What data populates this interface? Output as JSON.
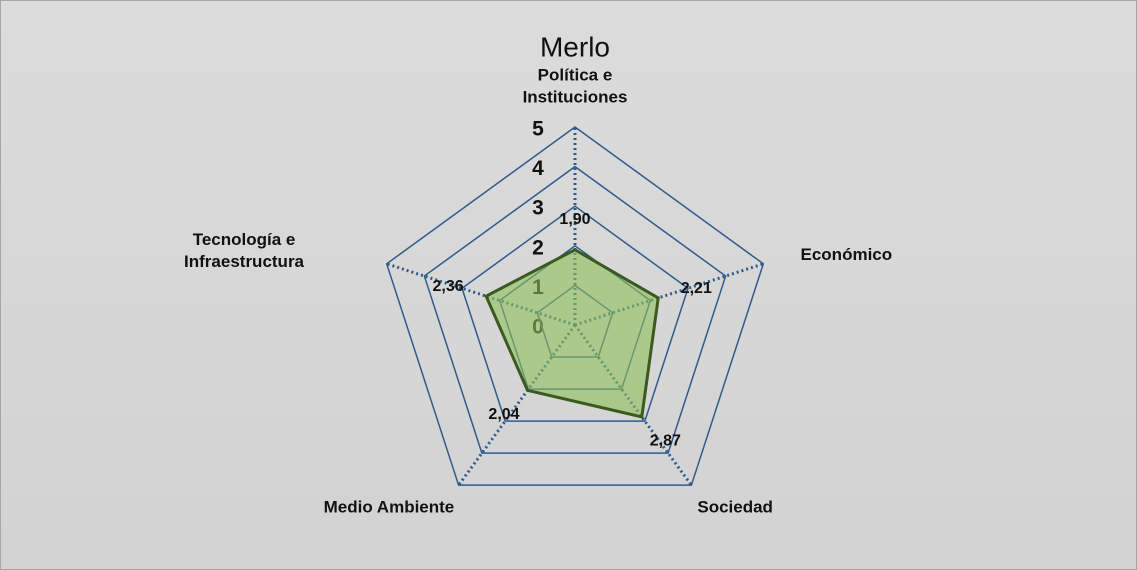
{
  "chart_data": {
    "type": "radar",
    "title": "Merlo",
    "categories": [
      "Política e Instituciones",
      "Económico",
      "Sociedad",
      "Medio Ambiente",
      "Tecnología e Infraestructura"
    ],
    "series": [
      {
        "name": "Merlo",
        "color": "#8fbf5a",
        "values": [
          1.9,
          2.21,
          2.87,
          2.04,
          2.36
        ],
        "value_labels": [
          "1,90",
          "2,21",
          "2,87",
          "2,04",
          "2,36"
        ]
      }
    ],
    "ylim": [
      0,
      5
    ],
    "yticks": [
      0,
      1,
      2,
      3,
      4,
      5
    ],
    "grid": true
  }
}
